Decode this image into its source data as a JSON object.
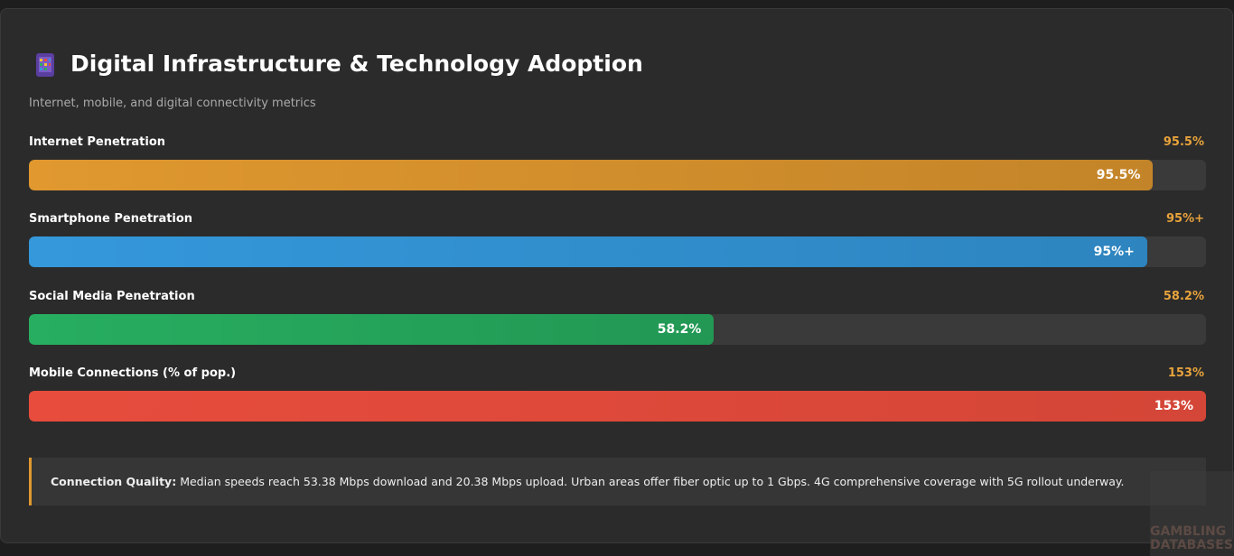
{
  "title": "Digital Infrastructure & Technology Adoption",
  "subtitle": "Internet, mobile, and digital connectivity metrics",
  "metrics": [
    {
      "label": "Internet Penetration",
      "value": 95.5,
      "value_label": "95.5%",
      "color": "#e0982f"
    },
    {
      "label": "Smartphone Penetration",
      "value": 95,
      "value_label": "95%+",
      "color": "#3498db"
    },
    {
      "label": "Social Media Penetration",
      "value": 58.2,
      "value_label": "58.2%",
      "color": "#27ae60"
    },
    {
      "label": "Mobile Connections (% of pop.)",
      "value": 153,
      "value_label": "153%",
      "color": "#e74c3c"
    }
  ],
  "note": {
    "heading": "Connection Quality:",
    "text": "Median speeds reach 53.38 Mbps download and 20.38 Mbps upload. Urban areas offer fiber optic up to 1 Gbps. 4G comprehensive coverage with 5G rollout underway."
  },
  "watermark": [
    "GAMBLING",
    "DATABASES"
  ]
}
